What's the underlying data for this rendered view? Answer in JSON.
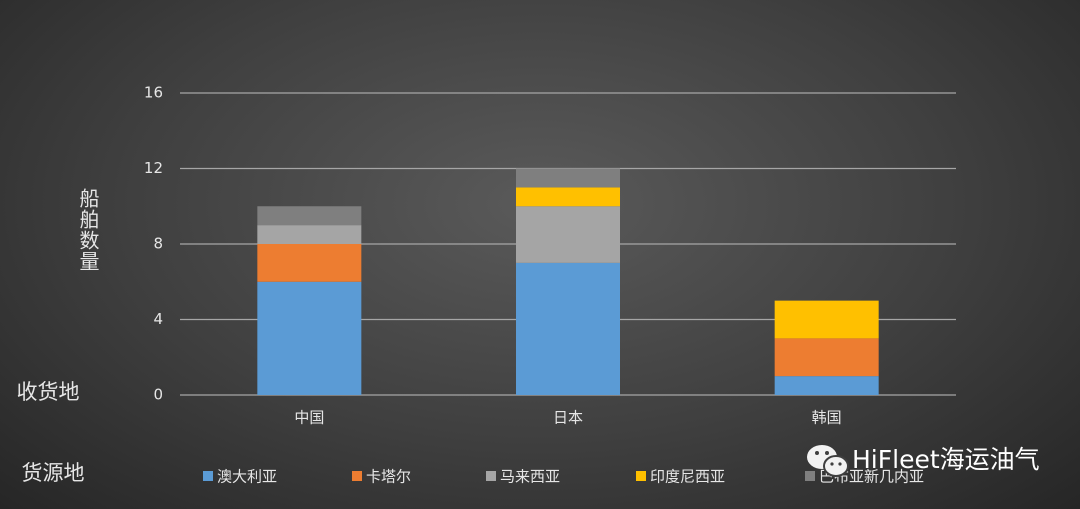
{
  "chart_data": {
    "type": "stacked_bar",
    "y_label": "船舶数量",
    "x_caption": "收货地",
    "legend_caption": "货源地",
    "watermark": "HiFleet海运油气",
    "categories": [
      "中国",
      "日本",
      "韩国"
    ],
    "series": [
      {
        "name": "澳大利亚",
        "color": "#5b9bd5",
        "values": [
          6,
          7,
          1
        ]
      },
      {
        "name": "卡塔尔",
        "color": "#ed7d31",
        "values": [
          2,
          0,
          2
        ]
      },
      {
        "name": "马来西亚",
        "color": "#a5a5a5",
        "values": [
          1,
          3,
          0
        ]
      },
      {
        "name": "印度尼西亚",
        "color": "#ffc000",
        "values": [
          0,
          1,
          2
        ]
      },
      {
        "name": "巴布亚新几内亚",
        "color": "#7f7f7f",
        "values": [
          1,
          1,
          0
        ]
      }
    ],
    "ylim": [
      0,
      16
    ],
    "yticks": [
      0,
      4,
      8,
      12,
      16
    ],
    "grid": true,
    "legend": "bottom"
  }
}
